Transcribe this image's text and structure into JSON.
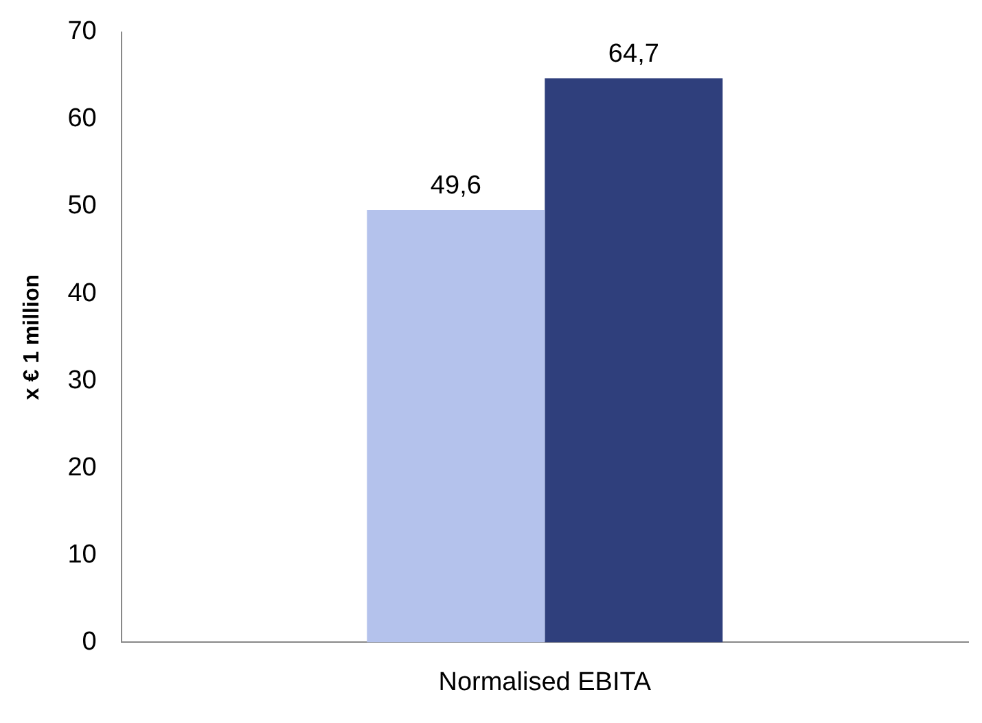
{
  "chart_data": {
    "type": "bar",
    "categories": [
      "Normalised EBITA"
    ],
    "ylabel": "x € 1 million",
    "series": [
      {
        "color": "#b4c2ec",
        "values": [
          49.6
        ],
        "value_labels": [
          "49,6"
        ]
      },
      {
        "color": "#2f3f7c",
        "values": [
          64.7
        ],
        "value_labels": [
          "64,7"
        ]
      }
    ],
    "ylim": [
      0,
      70
    ],
    "yticks": [
      0,
      10,
      20,
      30,
      40,
      50,
      60,
      70
    ],
    "grid": false,
    "legend": false
  }
}
